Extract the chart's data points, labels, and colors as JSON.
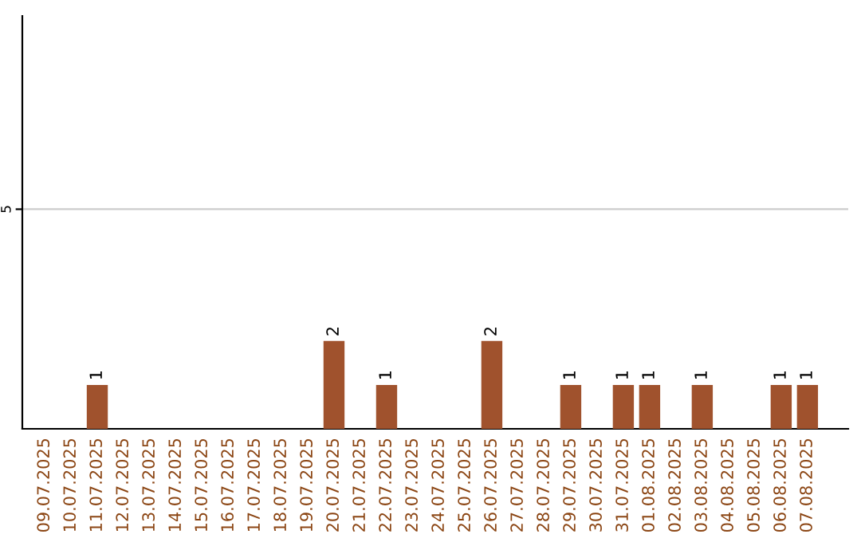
{
  "chart_data": {
    "type": "bar",
    "categories": [
      "09.07.2025",
      "10.07.2025",
      "11.07.2025",
      "12.07.2025",
      "13.07.2025",
      "14.07.2025",
      "15.07.2025",
      "16.07.2025",
      "17.07.2025",
      "18.07.2025",
      "19.07.2025",
      "20.07.2025",
      "21.07.2025",
      "22.07.2025",
      "23.07.2025",
      "24.07.2025",
      "25.07.2025",
      "26.07.2025",
      "27.07.2025",
      "28.07.2025",
      "29.07.2025",
      "30.07.2025",
      "31.07.2025",
      "01.08.2025",
      "02.08.2025",
      "03.08.2025",
      "04.08.2025",
      "05.08.2025",
      "06.08.2025",
      "07.08.2025"
    ],
    "values": [
      0,
      0,
      1,
      0,
      0,
      0,
      0,
      0,
      0,
      0,
      0,
      2,
      0,
      1,
      0,
      0,
      0,
      2,
      0,
      0,
      1,
      0,
      1,
      1,
      0,
      1,
      0,
      0,
      1,
      1
    ],
    "color": "#a0522d",
    "ylim": [
      0,
      9.4
    ],
    "yticks": [
      5
    ],
    "grid": "y",
    "value_labels": [
      null,
      null,
      "1",
      null,
      null,
      null,
      null,
      null,
      null,
      null,
      null,
      "2",
      null,
      "1",
      null,
      null,
      null,
      "2",
      null,
      null,
      "1",
      null,
      "1",
      "1",
      null,
      "1",
      null,
      null,
      "1",
      "1"
    ]
  }
}
